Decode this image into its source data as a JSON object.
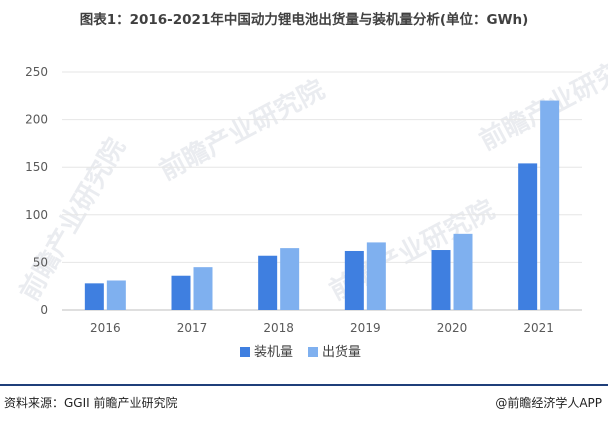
{
  "header": {
    "title": "图表1：2016-2021年中国动力锂电池出货量与装机量分析(单位：GWh)"
  },
  "watermark": {
    "text": "前瞻产业研究院"
  },
  "colors": {
    "series_0": "#3f7fe0",
    "series_1": "#7fb0ef",
    "grid": "#e6e6e6",
    "axis": "#bfbfbf",
    "footer_rule": "#1f3f7a"
  },
  "chart_data": {
    "type": "bar",
    "title": "",
    "xlabel": "",
    "ylabel": "",
    "categories": [
      "2016",
      "2017",
      "2018",
      "2019",
      "2020",
      "2021"
    ],
    "series": [
      {
        "name": "装机量",
        "values": [
          28,
          36,
          57,
          62,
          63,
          154
        ]
      },
      {
        "name": "出货量",
        "values": [
          31,
          45,
          65,
          71,
          80,
          220
        ]
      }
    ],
    "ylim": [
      0,
      250
    ],
    "yticks": [
      "0",
      "50",
      "100",
      "150",
      "200",
      "250"
    ],
    "grid": true,
    "legend": "bottom-center"
  },
  "footer": {
    "source": "资料来源：GGII 前瞻产业研究院",
    "credit": "@前瞻经济学人APP"
  }
}
